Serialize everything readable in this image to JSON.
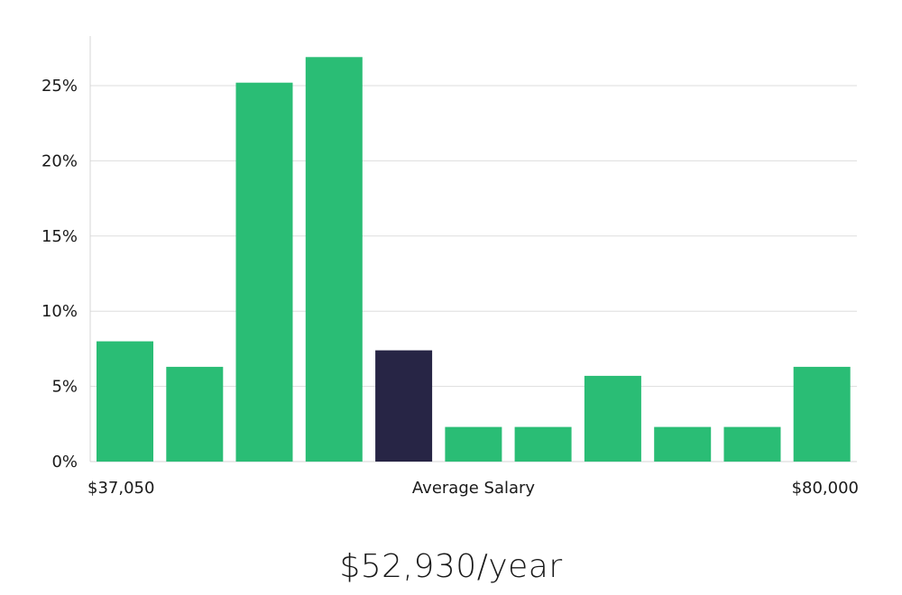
{
  "chart_data": {
    "type": "bar",
    "title": "",
    "xlabel": "Average Salary",
    "ylabel": "",
    "ylim": [
      0,
      28
    ],
    "yticks": [
      0,
      5,
      10,
      15,
      20,
      25
    ],
    "ytick_labels": [
      "0%",
      "5%",
      "10%",
      "15%",
      "20%",
      "25%"
    ],
    "x_min_label": "$37,050",
    "x_max_label": "$80,000",
    "grid": true,
    "values": [
      8.0,
      6.3,
      25.2,
      26.9,
      7.4,
      2.3,
      2.3,
      5.7,
      2.3,
      2.3,
      6.3
    ],
    "highlight_index": 4,
    "colors": {
      "bar": "#2abd75",
      "highlight": "#272545",
      "grid": "#dedede",
      "axis": "#d4d4d4"
    }
  },
  "summary": {
    "salary_text": "$52,930/year"
  }
}
